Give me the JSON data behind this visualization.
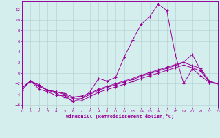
{
  "xlabel": "Windchill (Refroidissement éolien,°C)",
  "background_color": "#d4eeed",
  "grid_color": "#b0cdd0",
  "line_color": "#990099",
  "xlim": [
    0,
    23
  ],
  "ylim": [
    -6.5,
    13.5
  ],
  "xticks": [
    0,
    1,
    2,
    3,
    4,
    5,
    6,
    7,
    8,
    9,
    10,
    11,
    12,
    13,
    14,
    15,
    16,
    17,
    18,
    19,
    20,
    21,
    22,
    23
  ],
  "yticks": [
    -6,
    -4,
    -2,
    0,
    2,
    4,
    6,
    8,
    10,
    12
  ],
  "line1_x": [
    0,
    1,
    2,
    3,
    4,
    5,
    6,
    7,
    8,
    9,
    10,
    11,
    12,
    13,
    14,
    15,
    16,
    17,
    18,
    19,
    20,
    21,
    22,
    23
  ],
  "line1_y": [
    -2.8,
    -1.5,
    -2.5,
    -3.2,
    -3.8,
    -4.5,
    -5.3,
    -4.8,
    -3.5,
    -1.0,
    -1.5,
    -0.8,
    3.0,
    6.2,
    9.2,
    10.6,
    13.0,
    11.8,
    3.5,
    -2.0,
    0.8,
    -0.5,
    -1.8,
    -2.0
  ],
  "line2_x": [
    0,
    1,
    2,
    3,
    4,
    5,
    6,
    7,
    8,
    9,
    10,
    11,
    12,
    13,
    14,
    15,
    16,
    17,
    18,
    19,
    20,
    21,
    22,
    23
  ],
  "line2_y": [
    -2.8,
    -1.5,
    -2.5,
    -3.2,
    -3.5,
    -4.0,
    -4.8,
    -4.8,
    -4.0,
    -3.2,
    -2.7,
    -2.2,
    -1.7,
    -1.2,
    -0.6,
    -0.1,
    0.4,
    0.9,
    1.4,
    2.0,
    1.4,
    0.9,
    -1.5,
    -2.0
  ],
  "line3_x": [
    0,
    1,
    2,
    3,
    4,
    5,
    6,
    7,
    8,
    9,
    10,
    11,
    12,
    13,
    14,
    15,
    16,
    17,
    18,
    19,
    20,
    21,
    22,
    23
  ],
  "line3_y": [
    -3.2,
    -1.5,
    -3.0,
    -3.5,
    -4.2,
    -4.2,
    -5.3,
    -5.2,
    -4.4,
    -3.6,
    -3.1,
    -2.6,
    -2.1,
    -1.6,
    -1.0,
    -0.5,
    0.0,
    0.5,
    1.0,
    1.5,
    1.0,
    0.4,
    -1.6,
    -2.0
  ],
  "line4_x": [
    0,
    1,
    2,
    3,
    4,
    5,
    6,
    7,
    8,
    9,
    10,
    11,
    12,
    13,
    14,
    15,
    16,
    17,
    18,
    19,
    20,
    21,
    22,
    23
  ],
  "line4_y": [
    -2.8,
    -1.5,
    -2.2,
    -3.2,
    -3.5,
    -3.8,
    -4.5,
    -4.3,
    -3.8,
    -3.0,
    -2.5,
    -2.0,
    -1.5,
    -1.0,
    -0.4,
    0.1,
    0.6,
    1.1,
    1.6,
    2.1,
    3.5,
    0.5,
    -1.8,
    -2.0
  ]
}
